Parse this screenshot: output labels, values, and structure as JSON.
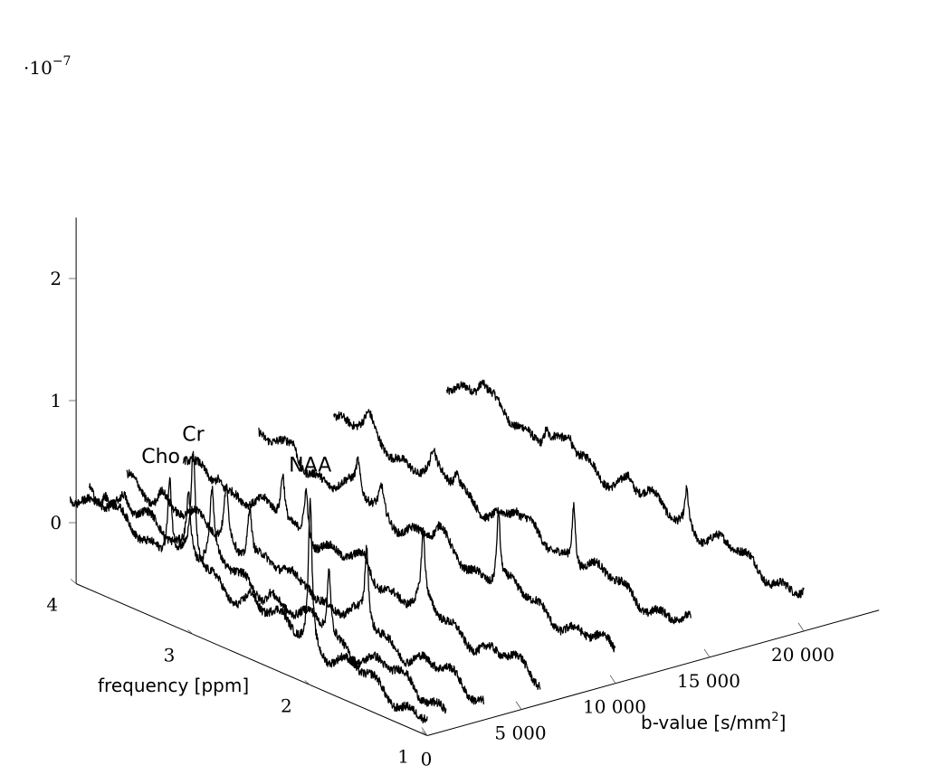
{
  "chart_data": {
    "type": "line",
    "projection": "3d-waterfall",
    "title": "",
    "z_scale_note": "·10",
    "z_scale_exponent": "−7",
    "xlabel": "b-value [s/mm",
    "xlabel_sup": "2",
    "xlabel_suffix": "]",
    "ylabel": "frequency [ppm]",
    "zlabel": "",
    "xlim": [
      0,
      24000
    ],
    "ylim": [
      1,
      4
    ],
    "zlim": [
      -0.5,
      2.5
    ],
    "x_ticks": [
      {
        "value": 0,
        "label": "0"
      },
      {
        "value": 5000,
        "label": "5 000"
      },
      {
        "value": 10000,
        "label": "10 000"
      },
      {
        "value": 15000,
        "label": "15 000"
      },
      {
        "value": 20000,
        "label": "20 000"
      }
    ],
    "y_ticks": [
      {
        "value": 1,
        "label": "1"
      },
      {
        "value": 2,
        "label": "2"
      },
      {
        "value": 3,
        "label": "3"
      },
      {
        "value": 4,
        "label": "4"
      }
    ],
    "z_ticks": [
      {
        "value": 0,
        "label": "0"
      },
      {
        "value": 1,
        "label": "1"
      },
      {
        "value": 2,
        "label": "2"
      }
    ],
    "peak_positions_ppm": {
      "Cho": 3.2,
      "Cr": 3.0,
      "NAA": 2.0
    },
    "annotations": [
      {
        "text": "Cho"
      },
      {
        "text": "Cr"
      },
      {
        "text": "NAA"
      }
    ],
    "series": [
      {
        "b_value": 0,
        "baseline_high": 0.25,
        "baseline_low": -0.35,
        "cho": 0.65,
        "cr": 0.9,
        "naa": 1.2
      },
      {
        "b_value": 1000,
        "baseline_high": 0.22,
        "baseline_low": -0.3,
        "cho": 0.5,
        "cr": 0.55,
        "naa": 0.55
      },
      {
        "b_value": 3000,
        "baseline_high": 0.2,
        "baseline_low": -0.32,
        "cho": 0.45,
        "cr": 0.45,
        "naa": 0.6
      },
      {
        "b_value": 6000,
        "baseline_high": 0.22,
        "baseline_low": -0.3,
        "cho": 0.4,
        "cr": 0.45,
        "naa": 0.55
      },
      {
        "b_value": 10000,
        "baseline_high": 0.25,
        "baseline_low": -0.25,
        "cho": 0.25,
        "cr": 0.2,
        "naa": 0.6
      },
      {
        "b_value": 14000,
        "baseline_high": 0.25,
        "baseline_low": -0.22,
        "cho": 0.15,
        "cr": 0.12,
        "naa": 0.5
      },
      {
        "b_value": 20000,
        "baseline_high": 0.3,
        "baseline_low": -0.2,
        "cho": 0.12,
        "cr": 0.1,
        "naa": 0.3
      }
    ]
  }
}
